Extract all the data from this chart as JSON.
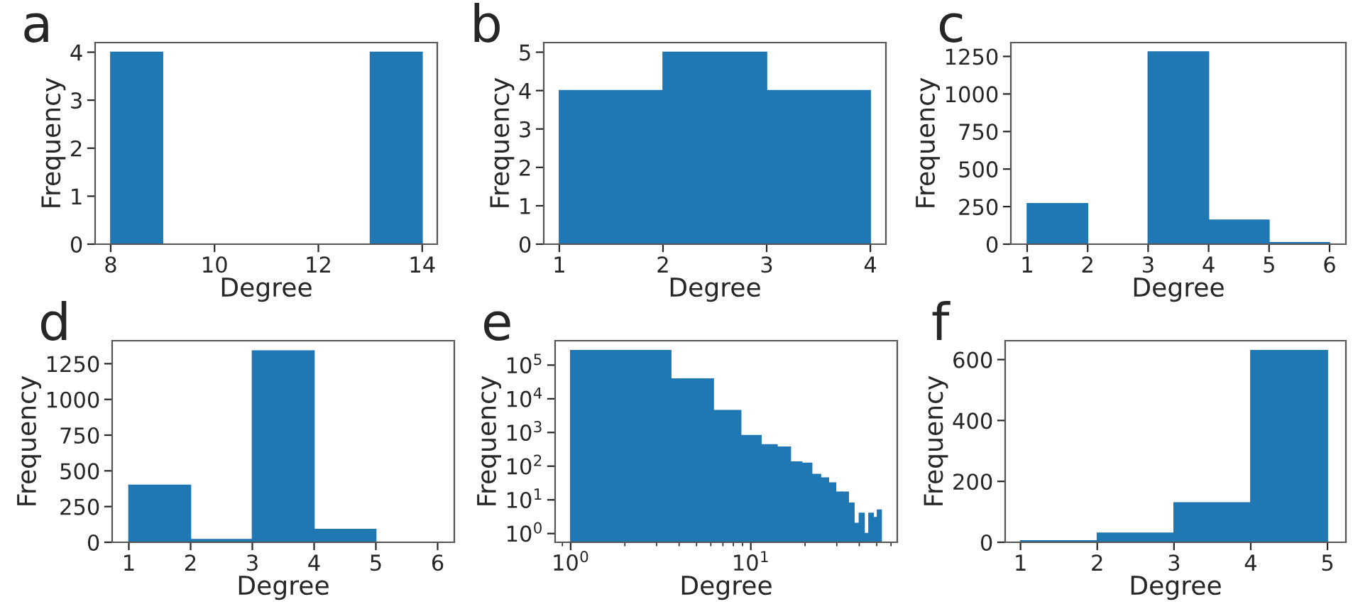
{
  "chart_data": [
    {
      "type": "histogram",
      "title": "a",
      "xlabel": "Degree",
      "ylabel": "Frequency",
      "bins": [
        8,
        9,
        10,
        11,
        12,
        13,
        14
      ],
      "values": [
        4,
        0,
        0,
        0,
        0,
        4
      ],
      "color": "#1f77b4",
      "xlim": [
        7.7,
        14.29
      ],
      "ylim": [
        0,
        4.2
      ],
      "xticks": [
        8,
        10,
        12,
        14
      ],
      "yticks": [
        0,
        1,
        2,
        3,
        4
      ]
    },
    {
      "type": "histogram",
      "title": "b",
      "xlabel": "Degree",
      "ylabel": "Frequency",
      "bins": [
        1,
        2,
        3,
        4
      ],
      "values": [
        4,
        5,
        4
      ],
      "color": "#1f77b4",
      "xlim": [
        0.85,
        4.15
      ],
      "ylim": [
        0,
        5.25
      ],
      "xticks": [
        1,
        2,
        3,
        4
      ],
      "yticks": [
        0,
        1,
        2,
        3,
        4,
        5
      ]
    },
    {
      "type": "histogram",
      "title": "c",
      "xlabel": "Degree",
      "ylabel": "Frequency",
      "bins": [
        1,
        2,
        3,
        4,
        5,
        6
      ],
      "values": [
        270,
        0,
        1280,
        160,
        10
      ],
      "color": "#1f77b4",
      "xlim": [
        0.73,
        6.27
      ],
      "ylim": [
        0,
        1342
      ],
      "xticks": [
        1,
        2,
        3,
        4,
        5,
        6
      ],
      "yticks": [
        0,
        250,
        500,
        750,
        1000,
        1250
      ]
    },
    {
      "type": "histogram",
      "title": "d",
      "xlabel": "Degree",
      "ylabel": "Frequency",
      "bins": [
        1,
        2,
        3,
        4,
        5,
        6
      ],
      "values": [
        400,
        20,
        1340,
        90,
        0
      ],
      "color": "#1f77b4",
      "xlim": [
        0.73,
        6.27
      ],
      "ylim": [
        0,
        1411
      ],
      "xticks": [
        1,
        2,
        3,
        4,
        5,
        6
      ],
      "yticks": [
        0,
        250,
        500,
        750,
        1000,
        1250
      ]
    },
    {
      "type": "histogram",
      "title": "e",
      "xlabel": "Degree",
      "ylabel": "Frequency",
      "log": "xy",
      "bins": [
        1,
        3.6,
        6.2,
        8.8,
        11.4,
        14,
        16.6,
        19.2,
        21.8,
        24.4,
        27,
        29.6,
        32.2,
        34.8,
        37.4,
        40,
        42.6,
        45.2,
        47.8,
        50.4,
        53
      ],
      "values": [
        270000,
        39000,
        4500,
        810,
        430,
        370,
        134,
        123,
        57,
        45,
        32,
        17,
        17,
        8,
        2,
        4,
        1,
        4,
        3,
        5
      ],
      "color": "#1f77b4",
      "xlim": [
        0.82,
        65
      ],
      "ylim": [
        0.55,
        530000
      ],
      "xticks": [
        {
          "value": 1,
          "label": "10$^{0}$"
        },
        {
          "value": 10,
          "label": "10$^{1}$"
        }
      ],
      "yticks": [
        {
          "value": 1,
          "label": "10$^{0}$"
        },
        {
          "value": 10,
          "label": "10$^{1}$"
        },
        {
          "value": 100,
          "label": "10$^{2}$"
        },
        {
          "value": 1000,
          "label": "10$^{3}$"
        },
        {
          "value": 10000,
          "label": "10$^{4}$"
        },
        {
          "value": 100000,
          "label": "10$^{5}$"
        }
      ]
    },
    {
      "type": "histogram",
      "title": "f",
      "xlabel": "Degree",
      "ylabel": "Frequency",
      "bins": [
        1,
        2,
        3,
        4,
        5
      ],
      "values": [
        5,
        30,
        130,
        630
      ],
      "color": "#1f77b4",
      "xlim": [
        0.8,
        5.24
      ],
      "ylim": [
        0,
        662
      ],
      "xticks": [
        1,
        2,
        3,
        4,
        5
      ],
      "yticks": [
        0,
        200,
        400,
        600
      ]
    }
  ]
}
